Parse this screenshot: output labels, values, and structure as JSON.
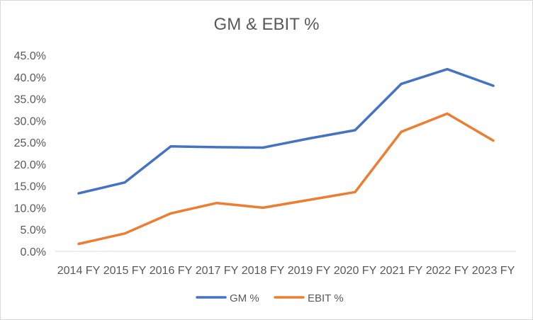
{
  "chart_data": {
    "type": "line",
    "title": "GM & EBIT %",
    "xlabel": "",
    "ylabel": "",
    "categories": [
      "2014 FY",
      "2015 FY",
      "2016 FY",
      "2017 FY",
      "2018 FY",
      "2019 FY",
      "2020 FY",
      "2021 FY",
      "2022 FY",
      "2023 FY"
    ],
    "yticks": [
      "0.0%",
      "5.0%",
      "10.0%",
      "15.0%",
      "20.0%",
      "25.0%",
      "30.0%",
      "35.0%",
      "40.0%",
      "45.0%"
    ],
    "ylim": [
      0,
      45
    ],
    "grid": false,
    "legend": "bottom",
    "series": [
      {
        "name": "GM %",
        "color": "#4472c4",
        "values": [
          13.3,
          15.8,
          24.1,
          23.9,
          23.8,
          25.9,
          27.8,
          38.4,
          41.8,
          38.0
        ]
      },
      {
        "name": "EBIT %",
        "color": "#ed7d31",
        "values": [
          1.7,
          4.1,
          8.7,
          11.1,
          10.0,
          11.8,
          13.6,
          27.4,
          31.6,
          25.4
        ]
      }
    ]
  }
}
